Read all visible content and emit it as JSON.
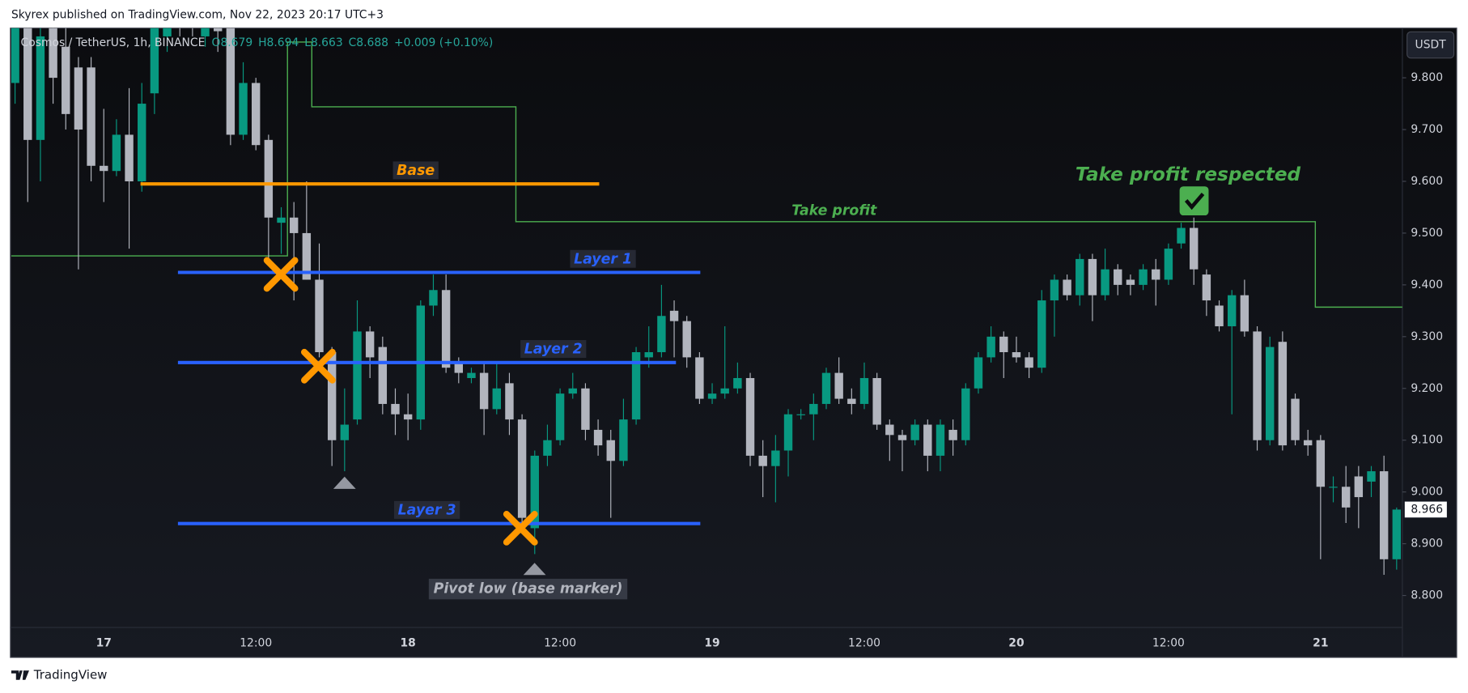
{
  "header": "Skyrex published on TradingView.com, Nov 22, 2023 20:17 UTC+3",
  "footer": "TradingView",
  "chart_data": {
    "type": "candlestick",
    "symbol": "Cosmos / TetherUS, 1h, BINANCE",
    "legend_values": [
      "O8.679",
      "H8.694",
      "L8.663",
      "C8.688",
      "+0.009 (+0.10%)"
    ],
    "currency": "USDT",
    "up_color": "#089981",
    "down_color": "#b2b5be",
    "categories": [
      null,
      null,
      null,
      null,
      null,
      null,
      null,
      "17",
      null,
      null,
      null,
      null,
      null,
      null,
      null,
      null,
      null,
      null,
      null,
      "12:00",
      null,
      null,
      null,
      null,
      null,
      null,
      null,
      null,
      null,
      null,
      null,
      "18",
      null,
      null,
      null,
      null,
      null,
      null,
      null,
      null,
      null,
      null,
      null,
      "12:00",
      null,
      null,
      null,
      null,
      null,
      null,
      null,
      null,
      null,
      null,
      null,
      "19",
      null,
      null,
      null,
      null,
      null,
      null,
      null,
      null,
      null,
      null,
      null,
      "12:00",
      null,
      null,
      null,
      null,
      null,
      null,
      null,
      null,
      null,
      null,
      null,
      "20",
      null,
      null,
      null,
      null,
      null,
      null,
      null,
      null,
      null,
      null,
      null,
      "12:00",
      null,
      null,
      null,
      null,
      null,
      null,
      null,
      null,
      null,
      null,
      null,
      "21",
      null,
      null,
      null,
      null,
      null,
      null
    ],
    "open": [
      9.79,
      9.9,
      9.68,
      9.9,
      9.86,
      9.82,
      9.82,
      9.63,
      9.62,
      9.69,
      9.6,
      9.77,
      9.88,
      9.95,
      9.93,
      9.88,
      9.93,
      9.9,
      9.69,
      9.79,
      9.68,
      9.52,
      9.53,
      9.5,
      9.41,
      9.27,
      9.1,
      9.14,
      9.31,
      9.28,
      9.17,
      9.15,
      9.14,
      9.36,
      9.39,
      9.25,
      9.22,
      9.23,
      9.16,
      9.21,
      9.14,
      8.93,
      9.07,
      9.1,
      9.19,
      9.2,
      9.12,
      9.1,
      9.06,
      9.14,
      9.26,
      9.27,
      9.35,
      9.33,
      9.26,
      9.18,
      9.19,
      9.2,
      9.22,
      9.07,
      9.05,
      9.08,
      9.15,
      9.15,
      9.17,
      9.23,
      9.18,
      9.17,
      9.22,
      9.13,
      9.11,
      9.1,
      9.13,
      9.07,
      9.12,
      9.1,
      9.2,
      9.26,
      9.3,
      9.27,
      9.26,
      9.24,
      9.37,
      9.41,
      9.38,
      9.45,
      9.38,
      9.43,
      9.41,
      9.4,
      9.43,
      9.41,
      9.48,
      9.51,
      9.42,
      9.36,
      9.32,
      9.38,
      9.31,
      9.1,
      9.29,
      9.18,
      9.1,
      9.1,
      9.01,
      9.01,
      9.03,
      9.02,
      9.04,
      8.87
    ],
    "high": [
      9.92,
      9.92,
      9.9,
      9.92,
      9.9,
      9.84,
      9.84,
      9.74,
      9.72,
      9.78,
      9.79,
      9.92,
      9.98,
      9.97,
      9.95,
      9.95,
      9.95,
      9.92,
      9.83,
      9.8,
      9.69,
      9.55,
      9.56,
      9.6,
      9.48,
      9.28,
      9.2,
      9.37,
      9.32,
      9.3,
      9.2,
      9.19,
      9.37,
      9.42,
      9.42,
      9.26,
      9.24,
      9.25,
      9.25,
      9.23,
      9.15,
      9.08,
      9.13,
      9.2,
      9.23,
      9.21,
      9.14,
      9.12,
      9.18,
      9.28,
      9.32,
      9.4,
      9.37,
      9.34,
      9.27,
      9.21,
      9.32,
      9.25,
      9.23,
      9.1,
      9.11,
      9.16,
      9.16,
      9.19,
      9.24,
      9.26,
      9.2,
      9.25,
      9.23,
      9.14,
      9.12,
      9.14,
      9.14,
      9.14,
      9.14,
      9.21,
      9.27,
      9.32,
      9.31,
      9.3,
      9.27,
      9.39,
      9.42,
      9.42,
      9.46,
      9.46,
      9.47,
      9.44,
      9.42,
      9.44,
      9.45,
      9.48,
      9.52,
      9.53,
      9.43,
      9.37,
      9.39,
      9.41,
      9.32,
      9.3,
      9.31,
      9.19,
      9.12,
      9.11,
      9.03,
      9.05,
      9.05,
      9.05,
      9.07,
      8.97
    ],
    "low": [
      9.75,
      9.56,
      9.6,
      9.75,
      9.7,
      9.43,
      9.6,
      9.56,
      9.61,
      9.47,
      9.58,
      9.73,
      9.85,
      9.88,
      9.88,
      9.86,
      9.85,
      9.67,
      9.68,
      9.66,
      9.45,
      9.46,
      9.37,
      9.41,
      9.26,
      9.05,
      9.04,
      9.13,
      9.22,
      9.15,
      9.11,
      9.1,
      9.12,
      9.34,
      9.23,
      9.21,
      9.21,
      9.11,
      9.15,
      9.11,
      8.93,
      8.88,
      9.05,
      9.09,
      9.18,
      9.1,
      9.07,
      8.95,
      9.05,
      9.13,
      9.24,
      9.26,
      9.26,
      9.24,
      9.17,
      9.17,
      9.18,
      9.19,
      9.05,
      8.99,
      8.98,
      9.03,
      9.14,
      9.1,
      9.16,
      9.17,
      9.15,
      9.16,
      9.12,
      9.06,
      9.04,
      9.09,
      9.04,
      9.04,
      9.07,
      9.09,
      9.19,
      9.25,
      9.22,
      9.25,
      9.22,
      9.23,
      9.3,
      9.37,
      9.36,
      9.33,
      9.37,
      9.38,
      9.38,
      9.39,
      9.36,
      9.4,
      9.47,
      9.4,
      9.34,
      9.31,
      9.15,
      9.3,
      9.08,
      9.09,
      9.08,
      9.09,
      9.07,
      8.87,
      8.98,
      8.94,
      8.93,
      8.99,
      8.84,
      8.85
    ],
    "close": [
      9.9,
      9.68,
      9.88,
      9.8,
      9.73,
      9.7,
      9.63,
      9.62,
      9.69,
      9.6,
      9.75,
      9.9,
      9.95,
      9.9,
      9.9,
      9.93,
      9.89,
      9.69,
      9.79,
      9.67,
      9.53,
      9.53,
      9.5,
      9.41,
      9.27,
      9.1,
      9.13,
      9.31,
      9.26,
      9.17,
      9.15,
      9.14,
      9.36,
      9.39,
      9.24,
      9.23,
      9.23,
      9.16,
      9.2,
      9.14,
      8.95,
      9.07,
      9.1,
      9.19,
      9.2,
      9.12,
      9.09,
      9.06,
      9.14,
      9.27,
      9.27,
      9.34,
      9.33,
      9.26,
      9.18,
      9.19,
      9.2,
      9.22,
      9.07,
      9.05,
      9.08,
      9.15,
      9.15,
      9.17,
      9.23,
      9.18,
      9.17,
      9.22,
      9.13,
      9.11,
      9.1,
      9.13,
      9.07,
      9.13,
      9.1,
      9.2,
      9.26,
      9.3,
      9.27,
      9.26,
      9.24,
      9.37,
      9.41,
      9.38,
      9.45,
      9.38,
      9.43,
      9.4,
      9.4,
      9.43,
      9.41,
      9.47,
      9.51,
      9.43,
      9.37,
      9.32,
      9.38,
      9.31,
      9.1,
      9.28,
      9.09,
      9.1,
      9.09,
      9.01,
      9.01,
      8.97,
      8.99,
      9.04,
      8.87,
      8.966
    ],
    "ylim": [
      8.684,
      9.896
    ],
    "yticks": [
      {
        "value": 8.8,
        "label": "8.800"
      },
      {
        "value": 8.9,
        "label": "8.900"
      },
      {
        "value": 9.0,
        "label": "9.000"
      },
      {
        "value": 9.1,
        "label": "9.100"
      },
      {
        "value": 9.2,
        "label": "9.200"
      },
      {
        "value": 9.3,
        "label": "9.300"
      },
      {
        "value": 9.4,
        "label": "9.400"
      },
      {
        "value": 9.5,
        "label": "9.500"
      },
      {
        "value": 9.6,
        "label": "9.600"
      },
      {
        "value": 9.7,
        "label": "9.700"
      },
      {
        "value": 9.8,
        "label": "9.800"
      }
    ],
    "levels": [
      {
        "name": "Base",
        "price": 9.595,
        "color": "#ff9800"
      },
      {
        "name": "Layer 1",
        "price": 9.424,
        "color": "#2962ff"
      },
      {
        "name": "Layer 2",
        "price": 9.25,
        "color": "#2962ff"
      },
      {
        "name": "Layer 3",
        "price": 8.939,
        "color": "#2962ff"
      }
    ],
    "take_profit": {
      "name": "Take profit",
      "color": "#4caf50",
      "values": [
        9.456,
        9.869,
        9.744,
        9.522,
        9.357
      ]
    },
    "annotations": [
      "Take profit respected",
      "Pivot low (base marker)"
    ]
  }
}
